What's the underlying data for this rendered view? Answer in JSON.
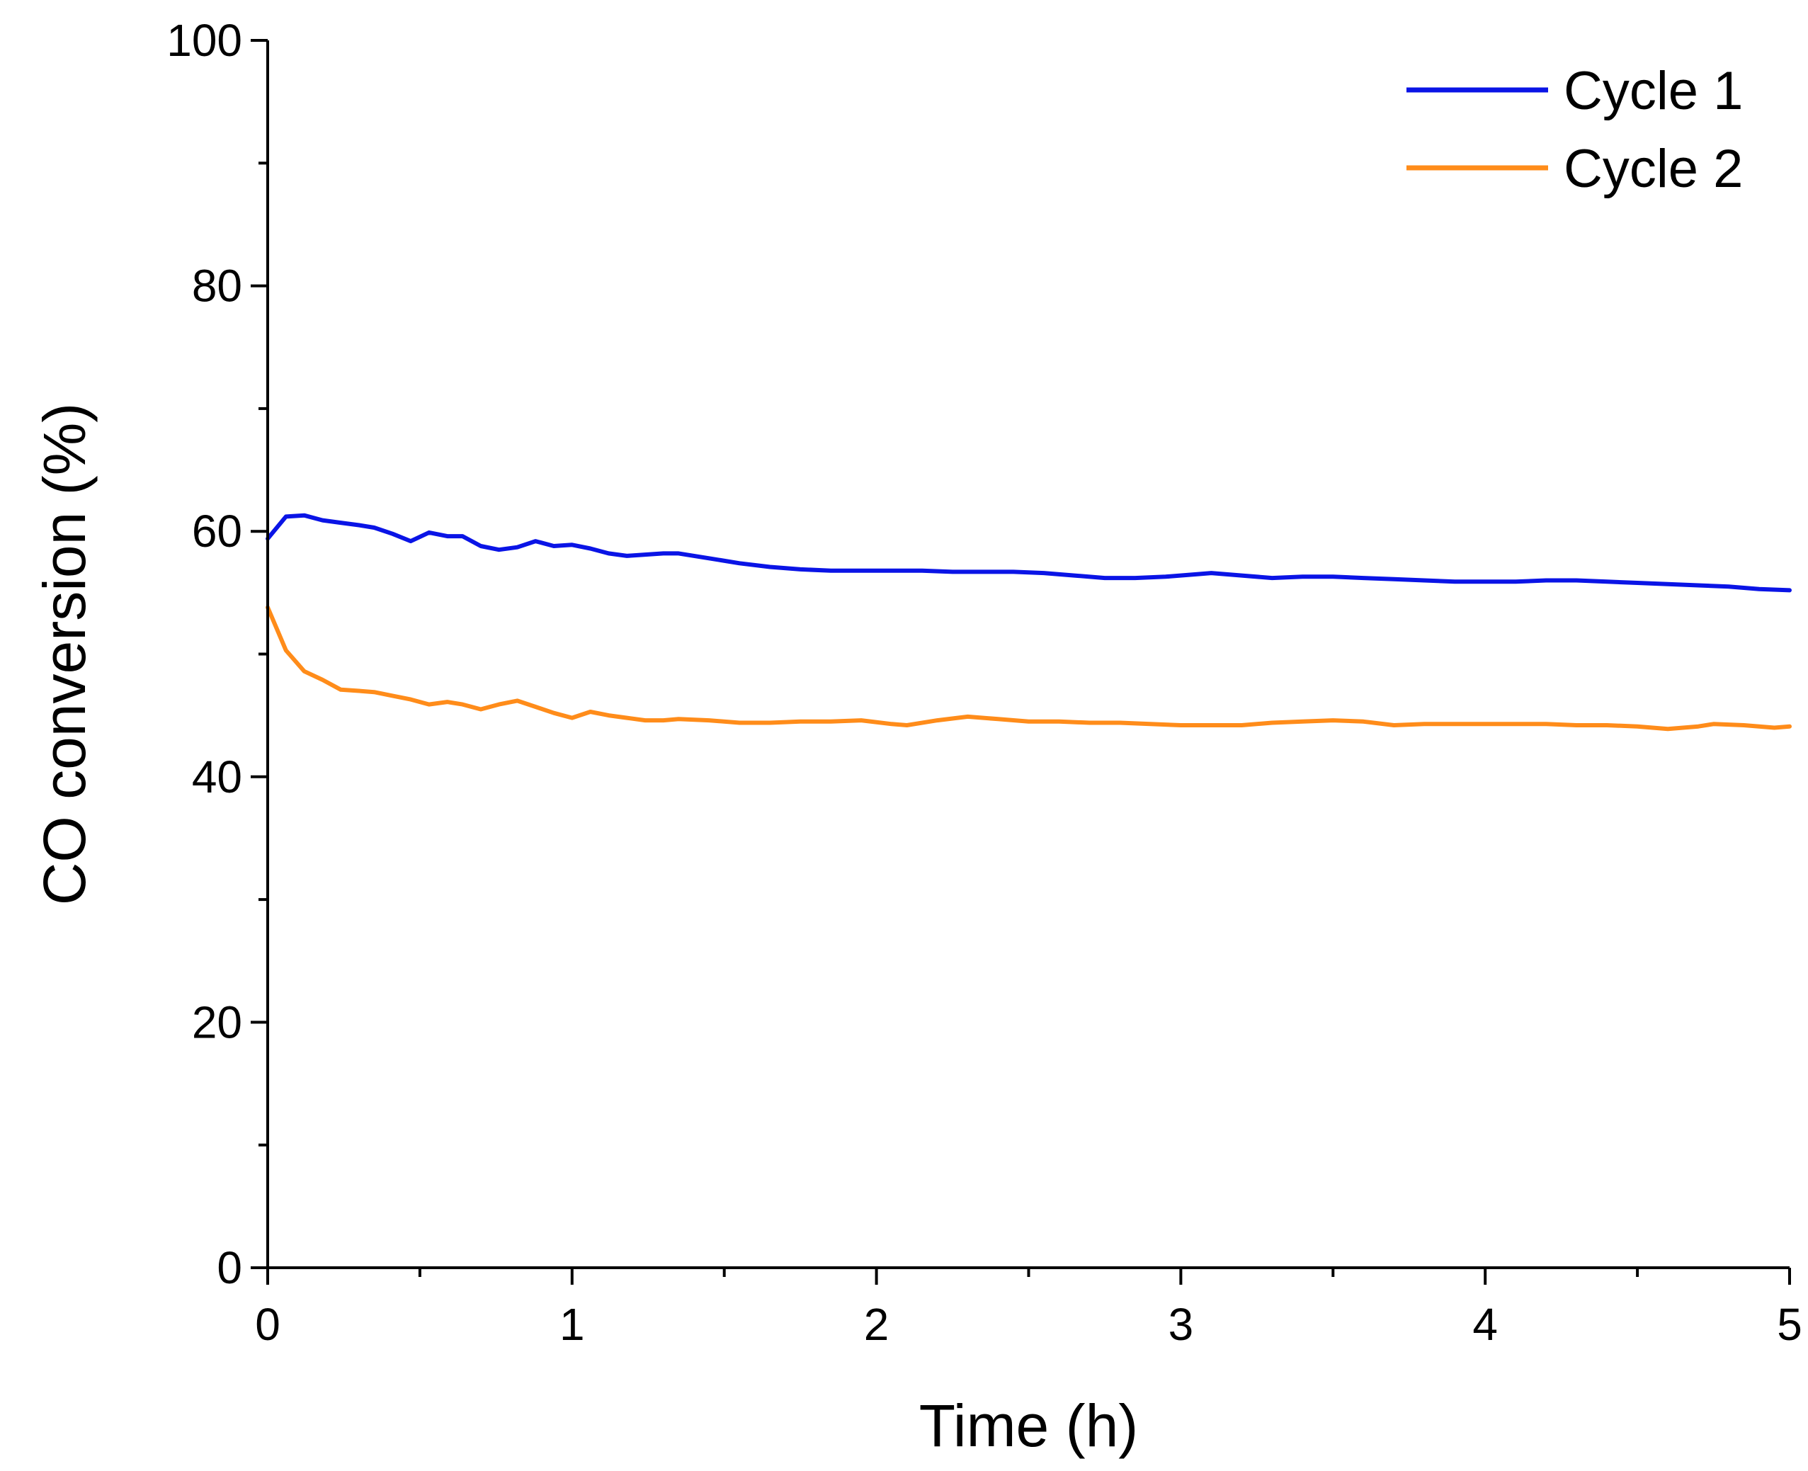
{
  "chart_data": {
    "type": "line",
    "title": "",
    "xlabel": "Time (h)",
    "ylabel": "CO conversion (%)",
    "xlim": [
      0,
      5
    ],
    "ylim": [
      0,
      100
    ],
    "x_major_ticks": [
      0,
      1,
      2,
      3,
      4,
      5
    ],
    "x_minor_ticks": [
      0.5,
      1.5,
      2.5,
      3.5,
      4.5
    ],
    "y_major_ticks": [
      0,
      20,
      40,
      60,
      80,
      100
    ],
    "y_minor_ticks": [
      10,
      30,
      50,
      70,
      90
    ],
    "x_tick_labels": [
      "0",
      "1",
      "2",
      "3",
      "4",
      "5"
    ],
    "y_tick_labels": [
      "0",
      "20",
      "40",
      "60",
      "80",
      "100"
    ],
    "grid": false,
    "legend_position": "top-right",
    "series": [
      {
        "name": "Cycle 1",
        "color": "#0a14e6",
        "x": [
          0,
          0.06,
          0.12,
          0.18,
          0.24,
          0.3,
          0.35,
          0.41,
          0.47,
          0.53,
          0.59,
          0.64,
          0.7,
          0.76,
          0.82,
          0.88,
          0.94,
          1.0,
          1.06,
          1.12,
          1.18,
          1.24,
          1.3,
          1.35,
          1.45,
          1.55,
          1.65,
          1.75,
          1.85,
          1.95,
          2.05,
          2.15,
          2.25,
          2.35,
          2.45,
          2.55,
          2.65,
          2.75,
          2.85,
          2.95,
          3.05,
          3.1,
          3.2,
          3.3,
          3.4,
          3.5,
          3.6,
          3.7,
          3.8,
          3.9,
          4.0,
          4.1,
          4.2,
          4.3,
          4.4,
          4.5,
          4.6,
          4.7,
          4.8,
          4.9,
          5.0
        ],
        "y": [
          59.4,
          61.2,
          61.3,
          60.9,
          60.7,
          60.5,
          60.3,
          59.8,
          59.2,
          59.9,
          59.6,
          59.6,
          58.8,
          58.5,
          58.7,
          59.2,
          58.8,
          58.9,
          58.6,
          58.2,
          58.0,
          58.1,
          58.2,
          58.2,
          57.8,
          57.4,
          57.1,
          56.9,
          56.8,
          56.8,
          56.8,
          56.8,
          56.7,
          56.7,
          56.7,
          56.6,
          56.4,
          56.2,
          56.2,
          56.3,
          56.5,
          56.6,
          56.4,
          56.2,
          56.3,
          56.3,
          56.2,
          56.1,
          56.0,
          55.9,
          55.9,
          55.9,
          56.0,
          56.0,
          55.9,
          55.8,
          55.7,
          55.6,
          55.5,
          55.3,
          55.2
        ]
      },
      {
        "name": "Cycle 2",
        "color": "#ff8c1a",
        "x": [
          0,
          0.06,
          0.12,
          0.18,
          0.24,
          0.3,
          0.35,
          0.41,
          0.47,
          0.53,
          0.59,
          0.64,
          0.7,
          0.76,
          0.82,
          0.88,
          0.94,
          1.0,
          1.06,
          1.12,
          1.18,
          1.24,
          1.3,
          1.35,
          1.45,
          1.55,
          1.65,
          1.75,
          1.85,
          1.95,
          2.05,
          2.1,
          2.2,
          2.3,
          2.4,
          2.5,
          2.6,
          2.7,
          2.8,
          2.9,
          3.0,
          3.1,
          3.2,
          3.3,
          3.4,
          3.5,
          3.6,
          3.7,
          3.8,
          3.9,
          4.0,
          4.1,
          4.2,
          4.3,
          4.4,
          4.5,
          4.6,
          4.7,
          4.75,
          4.85,
          4.95,
          5.0
        ],
        "y": [
          53.8,
          50.3,
          48.6,
          47.9,
          47.1,
          47.0,
          46.9,
          46.6,
          46.3,
          45.9,
          46.1,
          45.9,
          45.5,
          45.9,
          46.2,
          45.7,
          45.2,
          44.8,
          45.3,
          45.0,
          44.8,
          44.6,
          44.6,
          44.7,
          44.6,
          44.4,
          44.4,
          44.5,
          44.5,
          44.6,
          44.3,
          44.2,
          44.6,
          44.9,
          44.7,
          44.5,
          44.5,
          44.4,
          44.4,
          44.3,
          44.2,
          44.2,
          44.2,
          44.4,
          44.5,
          44.6,
          44.5,
          44.2,
          44.3,
          44.3,
          44.3,
          44.3,
          44.3,
          44.2,
          44.2,
          44.1,
          43.9,
          44.1,
          44.3,
          44.2,
          44.0,
          44.1
        ]
      }
    ]
  }
}
